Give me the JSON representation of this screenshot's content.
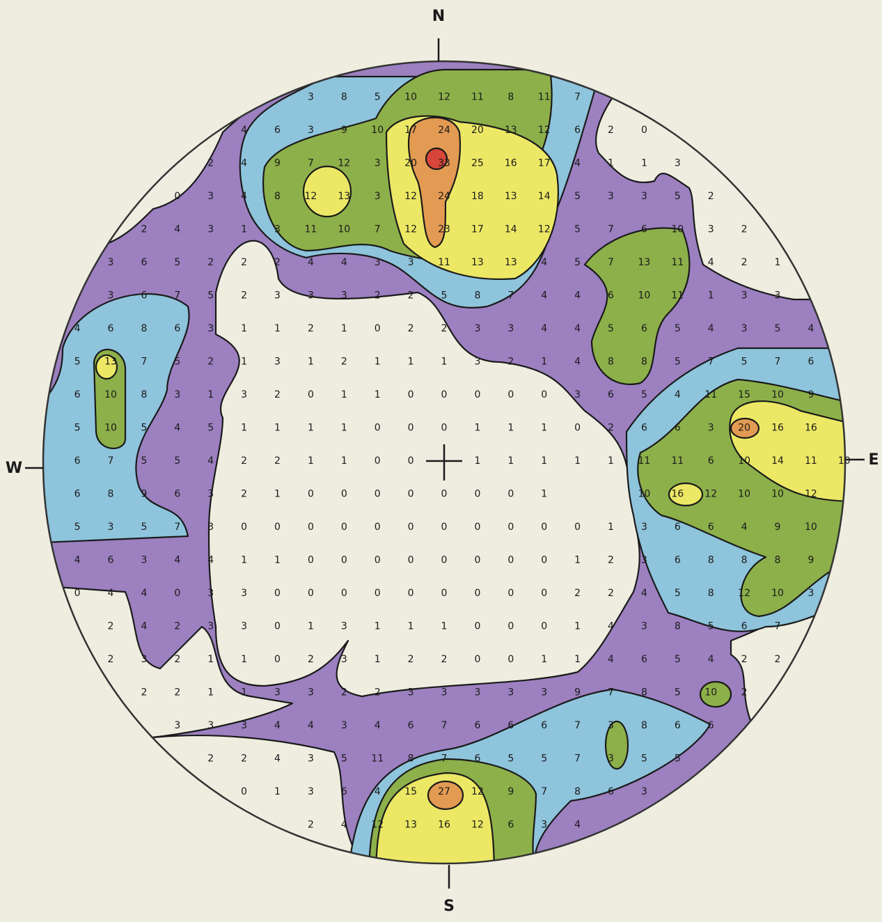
{
  "compass": {
    "north": "N",
    "south": "S",
    "east": "E",
    "west": "W"
  },
  "grid": {
    "rows": [
      [
        null,
        null,
        null,
        null,
        null,
        null,
        null,
        null,
        3,
        8,
        5,
        10,
        12,
        11,
        8,
        11,
        7,
        null,
        null,
        null,
        null,
        null,
        null,
        null,
        null
      ],
      [
        null,
        null,
        null,
        null,
        null,
        null,
        4,
        6,
        3,
        9,
        10,
        17,
        24,
        20,
        13,
        12,
        6,
        2,
        0,
        null,
        null,
        null,
        null,
        null,
        null
      ],
      [
        null,
        null,
        null,
        null,
        null,
        2,
        4,
        9,
        7,
        12,
        3,
        20,
        33,
        25,
        16,
        17,
        4,
        1,
        1,
        3,
        null,
        null,
        null,
        null,
        null
      ],
      [
        null,
        null,
        null,
        null,
        0,
        3,
        4,
        8,
        12,
        13,
        3,
        12,
        24,
        18,
        13,
        14,
        5,
        3,
        3,
        5,
        2,
        null,
        null,
        null,
        null
      ],
      [
        null,
        null,
        null,
        2,
        4,
        3,
        1,
        3,
        11,
        10,
        7,
        12,
        23,
        17,
        14,
        12,
        5,
        7,
        6,
        10,
        3,
        2,
        null,
        null,
        null
      ],
      [
        null,
        null,
        3,
        6,
        5,
        2,
        2,
        2,
        4,
        4,
        3,
        3,
        11,
        13,
        13,
        4,
        5,
        7,
        13,
        11,
        4,
        2,
        1,
        null,
        null
      ],
      [
        null,
        null,
        3,
        6,
        7,
        5,
        2,
        3,
        3,
        3,
        2,
        2,
        5,
        8,
        7,
        4,
        4,
        6,
        10,
        11,
        1,
        3,
        3,
        null,
        null
      ],
      [
        null,
        4,
        6,
        8,
        6,
        3,
        1,
        1,
        2,
        1,
        0,
        2,
        2,
        3,
        3,
        4,
        4,
        5,
        6,
        5,
        4,
        3,
        5,
        4,
        null
      ],
      [
        null,
        5,
        13,
        7,
        5,
        2,
        1,
        3,
        1,
        2,
        1,
        1,
        1,
        3,
        2,
        1,
        4,
        8,
        8,
        5,
        7,
        5,
        7,
        6,
        null
      ],
      [
        null,
        6,
        10,
        8,
        3,
        1,
        3,
        2,
        0,
        1,
        1,
        0,
        0,
        0,
        0,
        0,
        3,
        6,
        5,
        4,
        11,
        15,
        10,
        9,
        null
      ],
      [
        null,
        5,
        10,
        5,
        4,
        5,
        1,
        1,
        1,
        1,
        0,
        0,
        0,
        1,
        1,
        1,
        0,
        2,
        6,
        6,
        3,
        20,
        16,
        16,
        null
      ],
      [
        null,
        6,
        7,
        5,
        5,
        4,
        2,
        2,
        1,
        1,
        0,
        0,
        null,
        1,
        1,
        1,
        1,
        1,
        11,
        11,
        6,
        10,
        14,
        11,
        10
      ],
      [
        null,
        6,
        8,
        9,
        6,
        3,
        2,
        1,
        0,
        0,
        0,
        0,
        0,
        0,
        0,
        1,
        null,
        null,
        10,
        16,
        12,
        10,
        10,
        12,
        null
      ],
      [
        null,
        5,
        3,
        5,
        7,
        3,
        0,
        0,
        0,
        0,
        0,
        0,
        0,
        0,
        0,
        0,
        0,
        1,
        3,
        6,
        6,
        4,
        9,
        10,
        null
      ],
      [
        null,
        4,
        6,
        3,
        4,
        4,
        1,
        1,
        0,
        0,
        0,
        0,
        0,
        0,
        0,
        0,
        1,
        2,
        3,
        6,
        8,
        8,
        8,
        9,
        null
      ],
      [
        null,
        0,
        4,
        4,
        0,
        3,
        3,
        0,
        0,
        0,
        0,
        0,
        0,
        0,
        0,
        0,
        2,
        2,
        4,
        5,
        8,
        12,
        10,
        3,
        null
      ],
      [
        null,
        null,
        2,
        4,
        2,
        3,
        3,
        0,
        1,
        3,
        1,
        1,
        1,
        0,
        0,
        0,
        1,
        4,
        3,
        8,
        5,
        6,
        7,
        null,
        null
      ],
      [
        null,
        null,
        2,
        3,
        2,
        1,
        1,
        0,
        2,
        3,
        1,
        2,
        2,
        0,
        0,
        1,
        1,
        4,
        6,
        5,
        4,
        2,
        2,
        null,
        null
      ],
      [
        null,
        null,
        null,
        2,
        2,
        1,
        1,
        3,
        3,
        2,
        2,
        3,
        3,
        3,
        3,
        3,
        9,
        7,
        8,
        5,
        10,
        2,
        null,
        null,
        null
      ],
      [
        null,
        null,
        null,
        null,
        3,
        3,
        3,
        4,
        4,
        3,
        4,
        6,
        7,
        6,
        6,
        6,
        7,
        3,
        8,
        6,
        6,
        null,
        null,
        null,
        null
      ],
      [
        null,
        null,
        null,
        null,
        null,
        2,
        2,
        4,
        3,
        5,
        11,
        8,
        7,
        6,
        5,
        5,
        7,
        3,
        5,
        5,
        null,
        null,
        null,
        null,
        null
      ],
      [
        null,
        null,
        null,
        null,
        null,
        null,
        0,
        1,
        3,
        6,
        4,
        15,
        27,
        12,
        9,
        7,
        8,
        6,
        3,
        null,
        null,
        null,
        null,
        null,
        null
      ],
      [
        null,
        null,
        null,
        null,
        null,
        null,
        null,
        null,
        2,
        4,
        12,
        13,
        16,
        12,
        6,
        3,
        4,
        null,
        null,
        null,
        null,
        null,
        null,
        null,
        null
      ]
    ]
  }
}
